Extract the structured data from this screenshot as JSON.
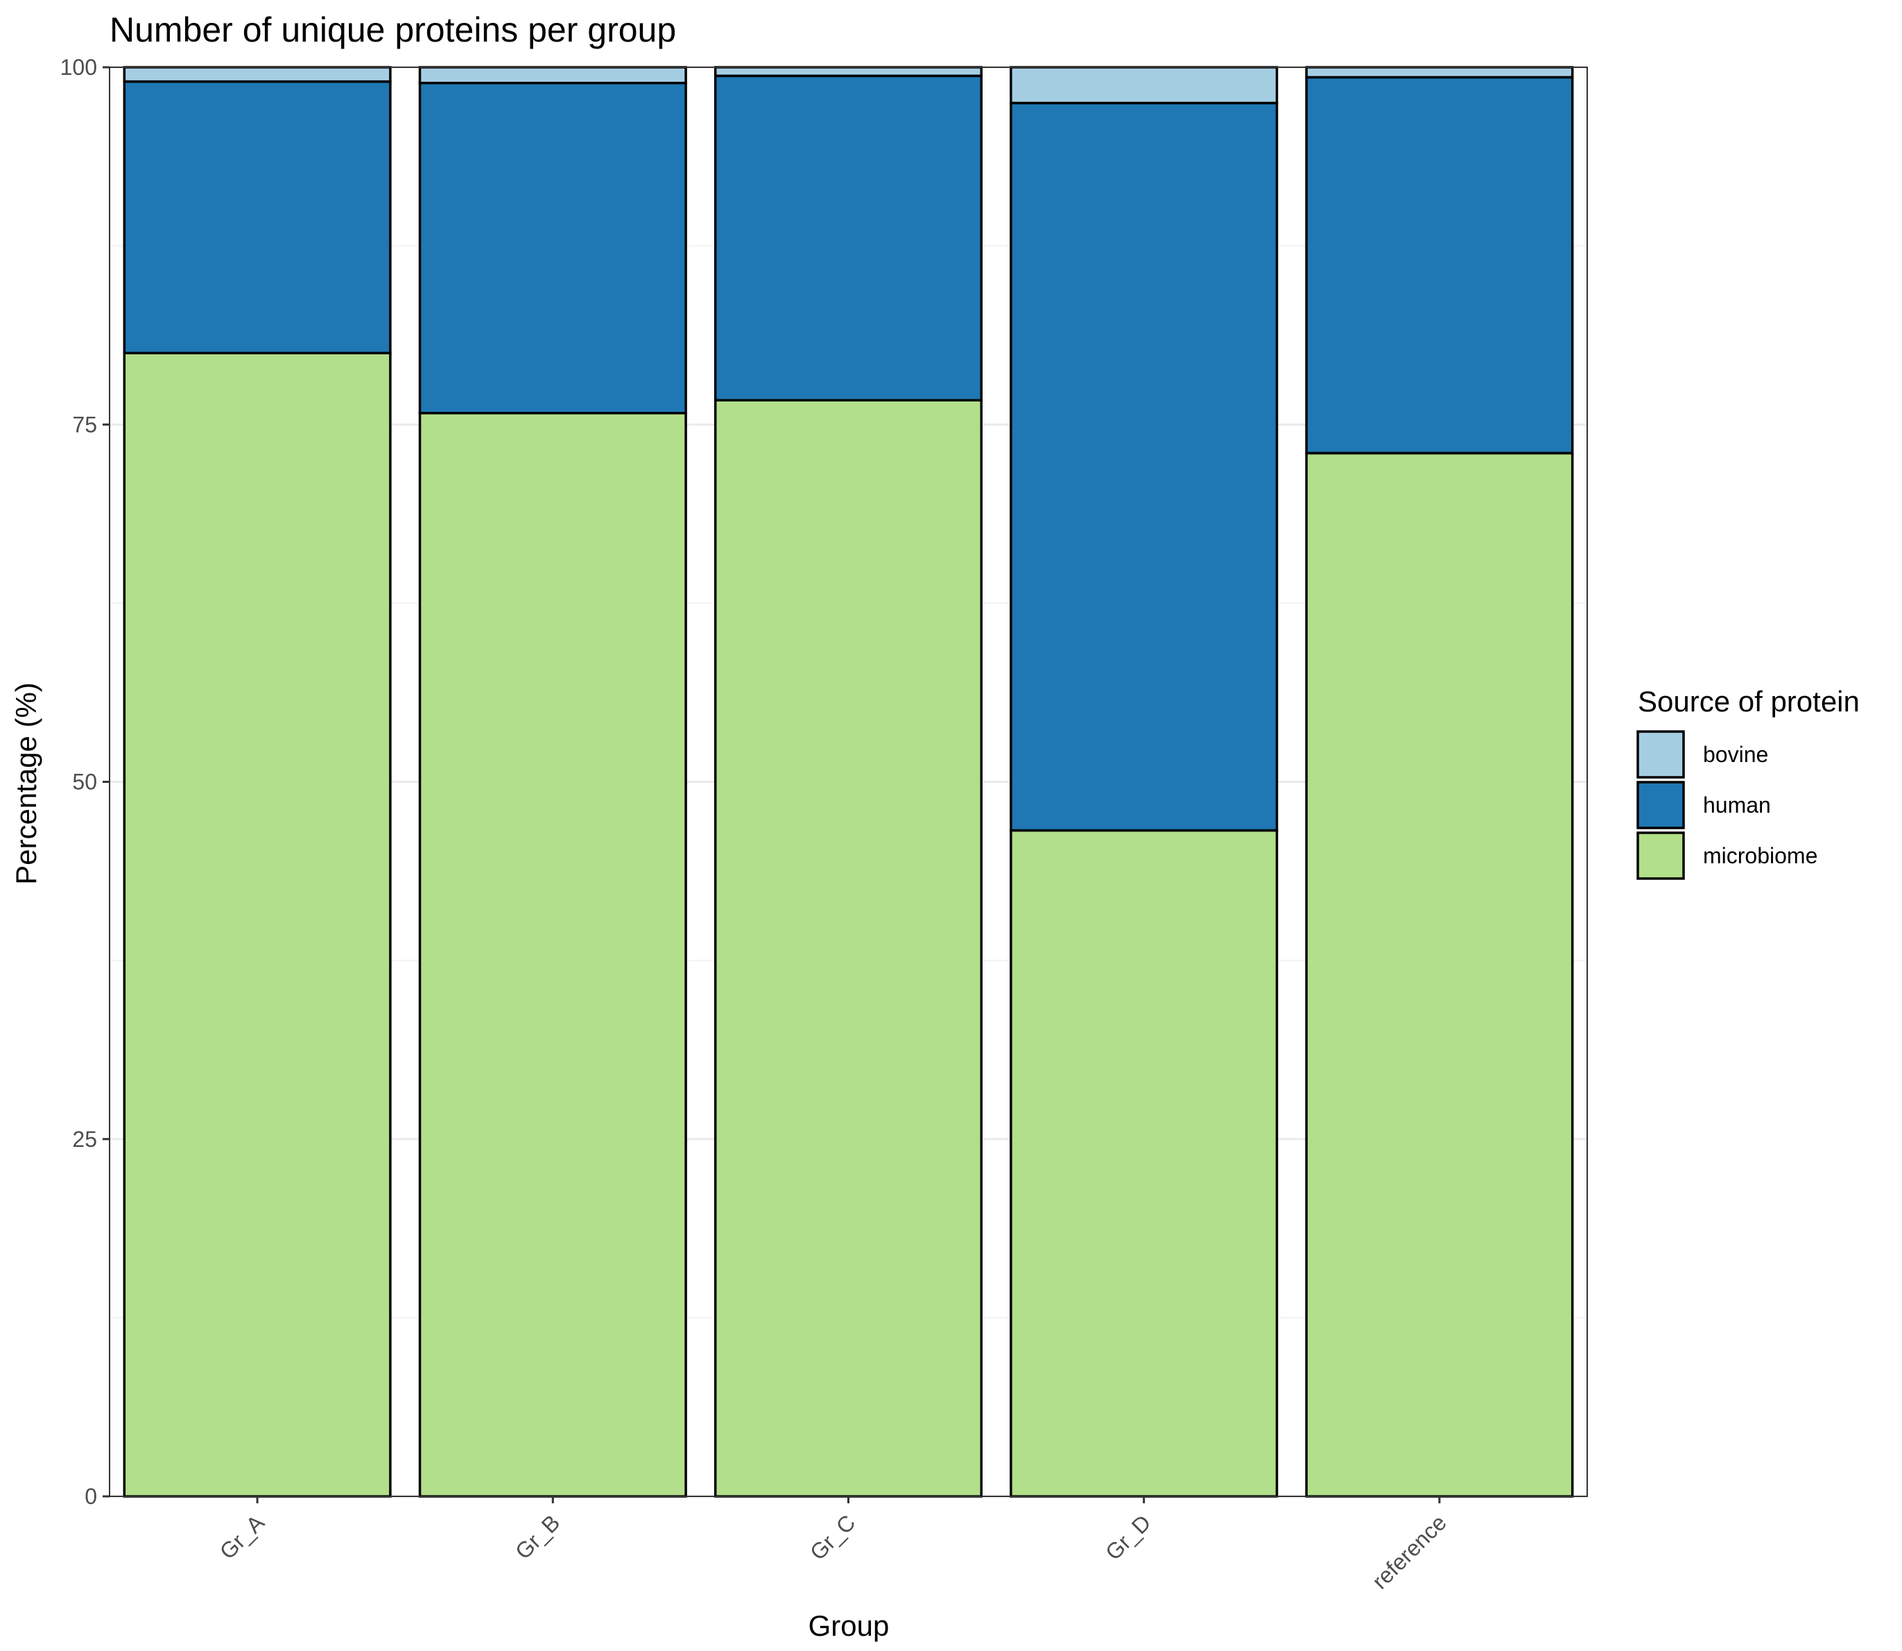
{
  "chart_data": {
    "type": "bar",
    "stacked": true,
    "title": "Number of unique proteins per group",
    "xlabel": "Group",
    "ylabel": "Percentage (%)",
    "ylim": [
      0,
      100
    ],
    "yticks": [
      "0",
      "25",
      "50",
      "75",
      "100"
    ],
    "grid": true,
    "legend": {
      "title": "Source of protein",
      "position": "right"
    },
    "categories": [
      "Gr_A",
      "Gr_B",
      "Gr_C",
      "Gr_D",
      "reference"
    ],
    "series": [
      {
        "name": "microbiome",
        "color": "#b2df8a",
        "values": [
          80.0,
          75.8,
          76.7,
          46.6,
          73.0
        ]
      },
      {
        "name": "human",
        "color": "#1f78b4",
        "values": [
          19.0,
          23.1,
          22.7,
          50.9,
          26.3
        ]
      },
      {
        "name": "bovine",
        "color": "#a6cee3",
        "values": [
          1.0,
          1.1,
          0.6,
          2.5,
          0.7
        ]
      }
    ],
    "legend_order": [
      "bovine",
      "human",
      "microbiome"
    ]
  }
}
